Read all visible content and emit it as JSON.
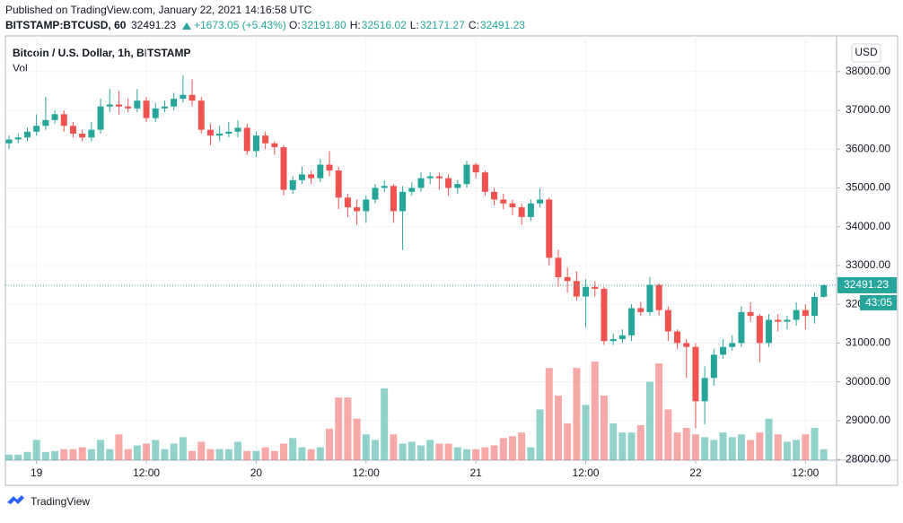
{
  "header": {
    "published": "Published on TradingView.com, January 22, 2021 14:16:58 UTC",
    "symbol": "BITSTAMP:BTCUSD, 60",
    "last": "32491.23",
    "change": "+1673.05 (+5.43%)",
    "ohlc": [
      {
        "label": "O:",
        "value": "32191.80"
      },
      {
        "label": "H:",
        "value": "32516.02"
      },
      {
        "label": "L:",
        "value": "32171.27"
      },
      {
        "label": "C:",
        "value": "32491.23"
      }
    ]
  },
  "chart_data": {
    "type": "candlestick",
    "title": "Bitcoin / U.S. Dollar, 1h, BITSTAMP",
    "volume_label": "Vol",
    "currency": "USD",
    "countdown": "43:05",
    "up_color": "#26a69a",
    "down_color": "#ef5350",
    "xlim": [
      -0.4,
      90.4
    ],
    "xticks": [
      {
        "value": 3,
        "label": "19"
      },
      {
        "value": 15,
        "label": "12:00"
      },
      {
        "value": 27,
        "label": "20"
      },
      {
        "value": 39,
        "label": "12:00"
      },
      {
        "value": 51,
        "label": "21"
      },
      {
        "value": 63,
        "label": "12:00"
      },
      {
        "value": 75,
        "label": "22"
      },
      {
        "value": 87,
        "label": "12:00"
      }
    ],
    "ylim": [
      27980,
      38920
    ],
    "yticks": [
      {
        "value": 28000,
        "label": "28000.00"
      },
      {
        "value": 29000,
        "label": "29000.00"
      },
      {
        "value": 30000,
        "label": "30000.00"
      },
      {
        "value": 31000,
        "label": "31000.00"
      },
      {
        "value": 32000,
        "label": "32000.00"
      },
      {
        "value": 33000,
        "label": "33000.00"
      },
      {
        "value": 34000,
        "label": "34000.00"
      },
      {
        "value": 35000,
        "label": "35000.00"
      },
      {
        "value": 36000,
        "label": "36000.00"
      },
      {
        "value": 37000,
        "label": "37000.00"
      },
      {
        "value": 38000,
        "label": "38000.00"
      }
    ],
    "grid": true,
    "open": [
      36150,
      36250,
      36300,
      36450,
      36600,
      36750,
      36900,
      36600,
      36400,
      36300,
      36500,
      37100,
      37150,
      37100,
      37050,
      37250,
      36800,
      37050,
      37100,
      37300,
      37400,
      37250,
      36500,
      36350,
      36400,
      36450,
      36550,
      35950,
      36350,
      36150,
      36050,
      34950,
      35200,
      35350,
      35250,
      35600,
      35450,
      34750,
      34500,
      34400,
      34700,
      35000,
      35050,
      34400,
      34900,
      35000,
      35250,
      35300,
      35250,
      35000,
      35100,
      35600,
      35400,
      34900,
      34700,
      34600,
      34500,
      34250,
      34600,
      34700,
      33200,
      32700,
      32600,
      32200,
      32450,
      32400,
      31050,
      31100,
      31200,
      31900,
      31800,
      32500,
      31850,
      31300,
      31000,
      30900,
      29500,
      30100,
      30700,
      30900,
      31000,
      31800,
      31700,
      31000,
      31600,
      31550,
      31600,
      31850,
      31700,
      32191.8
    ],
    "high": [
      36350,
      36400,
      36550,
      36900,
      37350,
      37000,
      37000,
      36700,
      36500,
      36700,
      37300,
      37550,
      37500,
      37300,
      37550,
      37350,
      37200,
      37250,
      37450,
      37900,
      37800,
      37350,
      36650,
      36600,
      36700,
      36750,
      36650,
      36450,
      36450,
      36200,
      36100,
      35300,
      35550,
      35450,
      35750,
      35950,
      35550,
      34850,
      34700,
      34800,
      35100,
      35200,
      35100,
      35050,
      35150,
      35400,
      35400,
      35400,
      35350,
      35200,
      35700,
      35650,
      35450,
      35000,
      34850,
      34700,
      34600,
      34700,
      35000,
      34750,
      33400,
      32950,
      32850,
      32650,
      32600,
      32450,
      31250,
      31350,
      32000,
      32050,
      32700,
      32550,
      31950,
      31350,
      31100,
      31000,
      30400,
      30850,
      31100,
      31200,
      31950,
      32050,
      31750,
      31750,
      31750,
      31700,
      32050,
      32000,
      32300,
      32516.02
    ],
    "low": [
      36000,
      36150,
      36200,
      36350,
      36500,
      36650,
      36450,
      36300,
      36200,
      36200,
      36400,
      36950,
      36900,
      36950,
      36950,
      36700,
      36700,
      36950,
      37000,
      37200,
      37100,
      36400,
      36100,
      36200,
      36300,
      36300,
      35850,
      35800,
      36000,
      35850,
      34800,
      34850,
      35100,
      35100,
      35150,
      35300,
      34450,
      34250,
      34050,
      34100,
      34600,
      34900,
      34100,
      33400,
      34800,
      34900,
      35100,
      34950,
      34800,
      34850,
      35000,
      35250,
      34800,
      34550,
      34450,
      34300,
      34050,
      34150,
      34500,
      33000,
      32450,
      32300,
      32100,
      31400,
      32200,
      30950,
      30950,
      31000,
      31050,
      31700,
      31700,
      31700,
      31050,
      30850,
      30100,
      28800,
      28900,
      29900,
      30600,
      30800,
      30900,
      31550,
      30500,
      30900,
      31300,
      31350,
      31450,
      31350,
      31500,
      32171.27
    ],
    "close": [
      36250,
      36300,
      36450,
      36600,
      36750,
      36900,
      36600,
      36400,
      36300,
      36500,
      37100,
      37150,
      37100,
      37050,
      37250,
      36800,
      37050,
      37100,
      37300,
      37400,
      37250,
      36500,
      36350,
      36400,
      36450,
      36550,
      35950,
      36350,
      36150,
      36050,
      34950,
      35200,
      35350,
      35250,
      35600,
      35450,
      34750,
      34500,
      34400,
      34700,
      35000,
      35050,
      34400,
      34900,
      35000,
      35250,
      35300,
      35250,
      35000,
      35100,
      35600,
      35400,
      34900,
      34700,
      34600,
      34500,
      34250,
      34600,
      34700,
      33200,
      32700,
      32600,
      32200,
      32450,
      32400,
      31050,
      31100,
      31200,
      31900,
      31800,
      32500,
      31850,
      31300,
      31000,
      30900,
      29500,
      30100,
      30700,
      30900,
      31000,
      31800,
      31700,
      31000,
      31600,
      31550,
      31600,
      31850,
      31700,
      32191.8,
      32491.23
    ],
    "volume": [
      6,
      6,
      9,
      22,
      9,
      10,
      12,
      12,
      14,
      12,
      22,
      12,
      28,
      12,
      16,
      18,
      22,
      12,
      18,
      25,
      10,
      20,
      12,
      12,
      12,
      20,
      10,
      10,
      14,
      10,
      18,
      24,
      14,
      12,
      14,
      34,
      68,
      68,
      45,
      28,
      22,
      78,
      28,
      18,
      20,
      16,
      22,
      18,
      18,
      14,
      12,
      12,
      14,
      16,
      24,
      26,
      30,
      14,
      55,
      100,
      70,
      40,
      100,
      60,
      107,
      70,
      40,
      30,
      30,
      38,
      85,
      105,
      55,
      30,
      35,
      28,
      25,
      22,
      30,
      25,
      28,
      22,
      30,
      45,
      28,
      20,
      22,
      28,
      35,
      12
    ]
  },
  "footer": {
    "brand": "TradingView"
  }
}
